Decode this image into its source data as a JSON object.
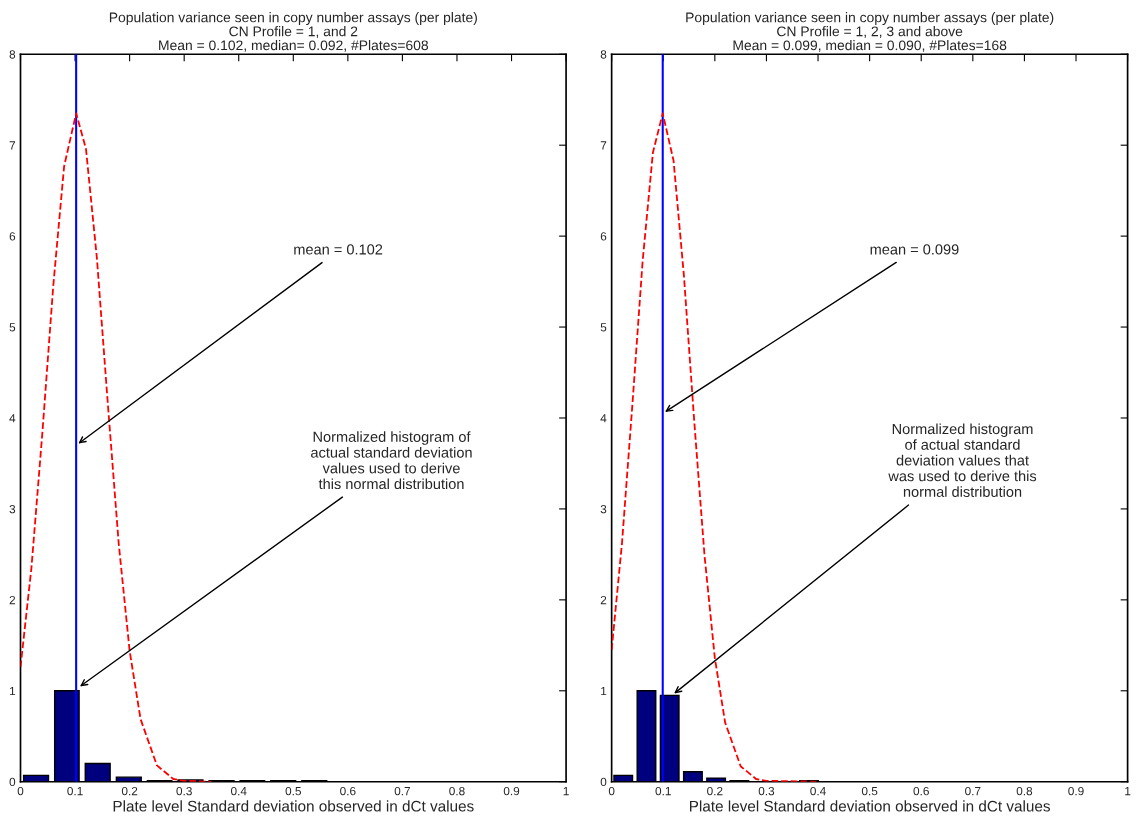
{
  "chart_data": [
    {
      "type": "histogram",
      "title": "Population variance seen in copy number assays (per plate)\nCN Profile = 1, and 2\nMean = 0.102, median= 0.092, #Plates=608",
      "xlabel": "Plate level Standard deviation observed in dCt values",
      "series": [
        {
          "color": "#00007f",
          "bins": [
            0,
            0.057,
            0.113,
            0.17,
            0.227,
            0.283,
            0.34,
            0.397,
            0.453,
            0.51,
            0.567
          ],
          "values": [
            0.07,
            1,
            0.2,
            0.05,
            0.01,
            0.02,
            0.01,
            0.01,
            0.01,
            0.01
          ]
        },
        {
          "type": "line",
          "color": "#ff0000",
          "line_style": "dashed",
          "x": [
            0,
            0.02,
            0.04,
            0.06,
            0.08,
            0.102,
            0.12,
            0.14,
            0.16,
            0.18,
            0.2,
            0.22,
            0.25,
            0.28,
            0.3,
            0.35
          ],
          "values": [
            1.26,
            2.35,
            3.83,
            5.45,
            6.77,
            7.35,
            6.96,
            5.76,
            4.16,
            2.62,
            1.44,
            0.69,
            0.18,
            0.03,
            0.01,
            0
          ]
        }
      ],
      "ref_lines": [
        {
          "axis": "x",
          "value": 0.102,
          "color": "#0000ff"
        }
      ],
      "annotations": [
        {
          "text": "mean = 0.102",
          "x": 0.102,
          "y": 3.7
        },
        {
          "text": "Normalized histogram of\nactual standard deviation\nvalues used to derive\nthis normal distribution",
          "x": 0.105,
          "y": 1.03
        }
      ],
      "xlim": [
        0,
        1
      ],
      "ylim": [
        0,
        8
      ],
      "xticks": [
        0,
        0.1,
        0.2,
        0.3,
        0.4,
        0.5,
        0.6,
        0.7,
        0.8,
        0.9,
        1
      ],
      "yticks": [
        0,
        1,
        2,
        3,
        4,
        5,
        6,
        7,
        8
      ],
      "grid": false,
      "legend": false
    },
    {
      "type": "histogram",
      "title": "Population variance seen in copy number assays (per plate)\nCN Profile = 1, 2, 3 and above\nMean = 0.099, median = 0.090, #Plates=168",
      "xlabel": "Plate level Standard deviation observed in dCt values",
      "series": [
        {
          "color": "#00007f",
          "bins": [
            0,
            0.045,
            0.09,
            0.135,
            0.18,
            0.225,
            0.27,
            0.315,
            0.36,
            0.405
          ],
          "values": [
            0.07,
            1,
            0.95,
            0.11,
            0.04,
            0.01,
            null,
            null,
            0.01
          ]
        },
        {
          "type": "line",
          "color": "#ff0000",
          "line_style": "dashed",
          "x": [
            0,
            0.02,
            0.04,
            0.06,
            0.08,
            0.099,
            0.12,
            0.14,
            0.16,
            0.18,
            0.2,
            0.22,
            0.25,
            0.28,
            0.3,
            0.4
          ],
          "values": [
            1.45,
            2.62,
            4.13,
            5.72,
            6.92,
            7.35,
            6.83,
            5.57,
            3.97,
            2.49,
            1.36,
            0.65,
            0.17,
            0.03,
            0.01,
            0
          ]
        }
      ],
      "ref_lines": [
        {
          "axis": "x",
          "value": 0.099,
          "color": "#0000ff"
        }
      ],
      "annotations": [
        {
          "text": "mean = 0.099",
          "x": 0.099,
          "y": 4.05
        },
        {
          "text": "Normalized histogram\nof actual standard\ndeviation values that\nwas used to derive this\nnormal distribution",
          "x": 0.117,
          "y": 0.95
        }
      ],
      "xlim": [
        0,
        1
      ],
      "ylim": [
        0,
        8
      ],
      "xticks": [
        0,
        0.1,
        0.2,
        0.3,
        0.4,
        0.5,
        0.6,
        0.7,
        0.8,
        0.9,
        1
      ],
      "yticks": [
        0,
        1,
        2,
        3,
        4,
        5,
        6,
        7,
        8
      ],
      "grid": false,
      "legend": false
    }
  ]
}
